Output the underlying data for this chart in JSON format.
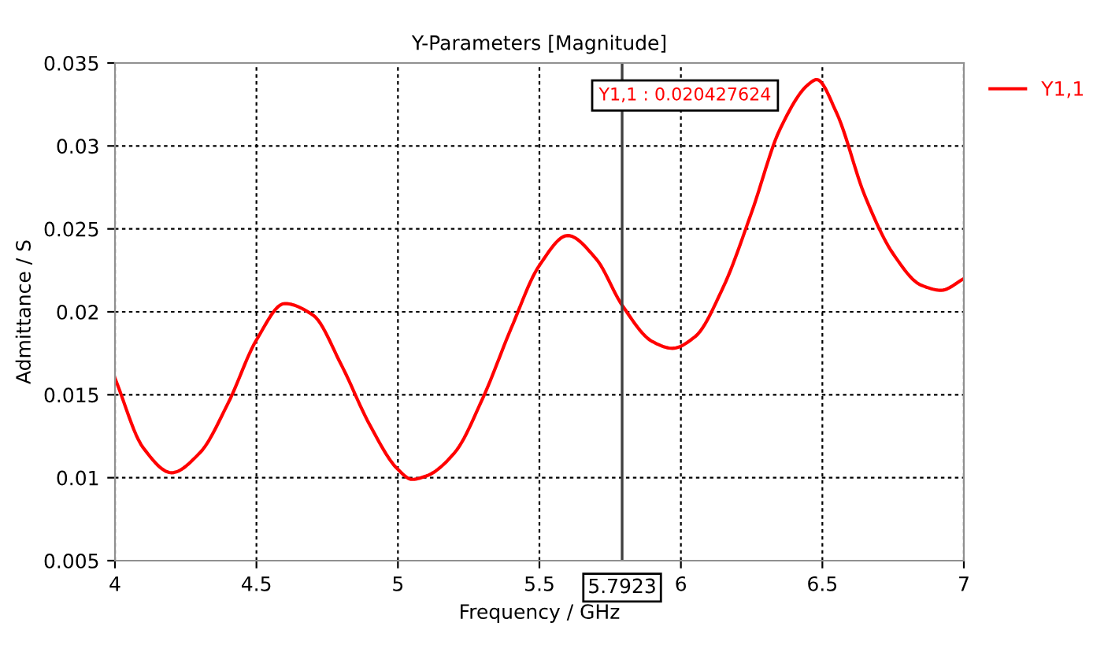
{
  "chart_data": {
    "type": "line",
    "title": "Y-Parameters [Magnitude]",
    "xlabel": "Frequency / GHz",
    "ylabel": "Admittance / S",
    "xlim": [
      4,
      7
    ],
    "xticks": [
      4,
      4.5,
      5,
      5.5,
      6,
      6.5,
      7
    ],
    "ylim": [
      0.005,
      0.035
    ],
    "yticks": [
      0.005,
      0.01,
      0.015,
      0.02,
      0.025,
      0.03,
      0.035
    ],
    "grid": true,
    "legend": "right",
    "line_style": "solid",
    "marker": "none",
    "series": [
      {
        "name": "Y1,1",
        "color": "#ff0000",
        "x": [
          4,
          4.1,
          4.2,
          4.3,
          4.4,
          4.5,
          4.6,
          4.7,
          4.8,
          4.9,
          5.0,
          5.05,
          5.1,
          5.2,
          5.3,
          5.4,
          5.5,
          5.6,
          5.7,
          5.7923,
          5.9,
          5.97,
          6.05,
          6.15,
          6.25,
          6.35,
          6.45,
          6.48,
          6.55,
          6.65,
          6.75,
          6.85,
          6.92,
          7.0
        ],
        "values": [
          0.016,
          0.0118,
          0.0103,
          0.0115,
          0.0145,
          0.0183,
          0.0205,
          0.0198,
          0.0168,
          0.0132,
          0.0105,
          0.0099,
          0.0101,
          0.0115,
          0.0148,
          0.019,
          0.0228,
          0.0246,
          0.0232,
          0.0204,
          0.0182,
          0.0178,
          0.0185,
          0.0215,
          0.026,
          0.031,
          0.0337,
          0.034,
          0.032,
          0.027,
          0.0235,
          0.0216,
          0.0213,
          0.022
        ]
      }
    ],
    "ref_lines": [
      {
        "axis": "x",
        "value": 5.7923,
        "label": "5.7923",
        "color": "#404040"
      }
    ],
    "annotations": [
      "Y1,1 : 0.020427624"
    ]
  }
}
